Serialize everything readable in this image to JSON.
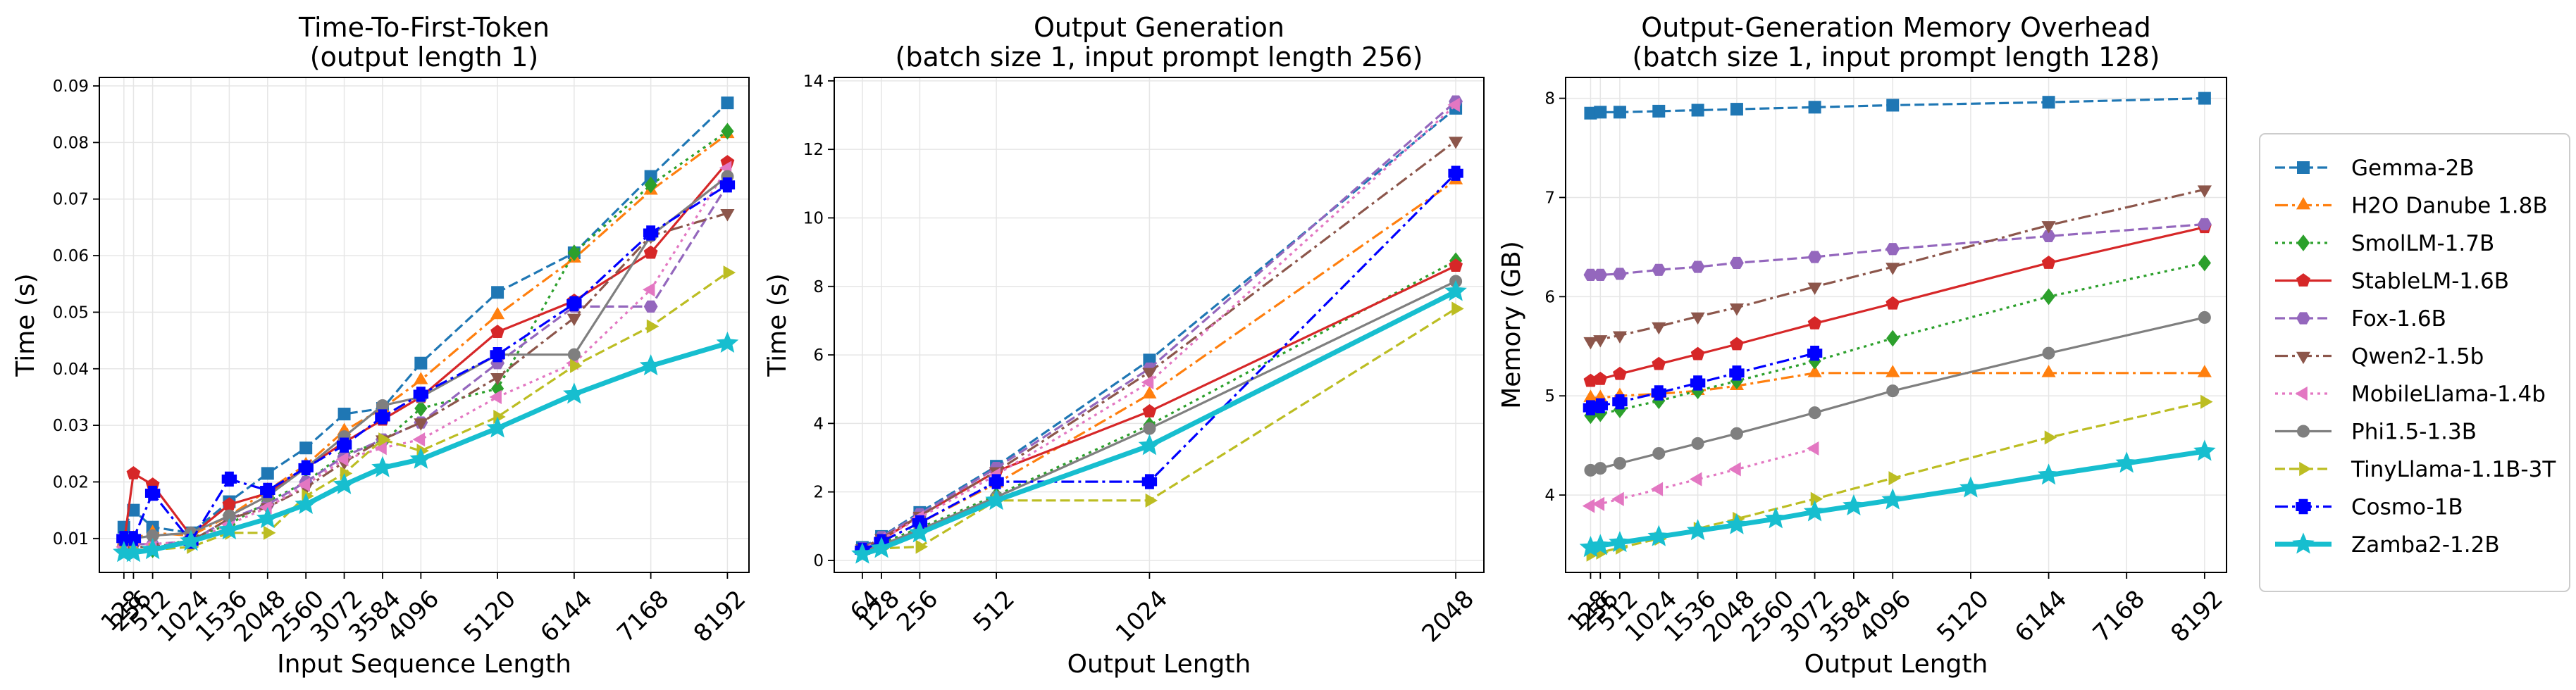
{
  "chart_data": [
    {
      "type": "line",
      "title": "Time-To-First-Token\n(output length 1)",
      "xlabel": "Input Sequence Length",
      "ylabel": "Time (s)",
      "xlim": [
        -200,
        8480
      ],
      "ylim": [
        0.004,
        0.0915
      ],
      "xticks": [
        128,
        256,
        512,
        1024,
        1536,
        2048,
        2560,
        3072,
        3584,
        4096,
        5120,
        6144,
        7168,
        8192
      ],
      "xtick_labels": [
        "128",
        "256",
        "512",
        "1024",
        "1536",
        "2048",
        "2560",
        "3072",
        "3584",
        "4096",
        "5120",
        "6144",
        "7168",
        "8192"
      ],
      "yticks": [
        0.01,
        0.02,
        0.03,
        0.04,
        0.05,
        0.06,
        0.07,
        0.08,
        0.09
      ],
      "ytick_labels": [
        "0.01",
        "0.02",
        "0.03",
        "0.04",
        "0.05",
        "0.06",
        "0.07",
        "0.08",
        "0.09"
      ],
      "grid": true,
      "series": [
        {
          "name": "Gemma-2B",
          "x": [
            128,
            256,
            512,
            1024,
            1536,
            2048,
            2560,
            3072,
            3584,
            4096,
            5120,
            6144,
            7168,
            8192
          ],
          "y": [
            0.012,
            0.015,
            0.012,
            0.011,
            0.0165,
            0.0215,
            0.026,
            0.032,
            0.033,
            0.041,
            0.0535,
            0.0605,
            0.074,
            0.087
          ]
        },
        {
          "name": "H2O Danube 1.8B",
          "x": [
            128,
            256,
            512,
            1024,
            1536,
            2048,
            2560,
            3072,
            3584,
            4096,
            5120,
            6144,
            7168,
            8192
          ],
          "y": [
            0.0095,
            0.01,
            0.011,
            0.0105,
            0.014,
            0.0185,
            0.023,
            0.029,
            0.033,
            0.038,
            0.0495,
            0.0595,
            0.0715,
            0.0815
          ]
        },
        {
          "name": "SmolLM-1.7B",
          "x": [
            128,
            256,
            512,
            1024,
            1536,
            2048,
            2560,
            3072,
            3584,
            4096,
            5120,
            6144,
            7168,
            8192
          ],
          "y": [
            0.008,
            0.009,
            0.008,
            0.01,
            0.0125,
            0.0165,
            0.02,
            0.025,
            0.027,
            0.033,
            0.0365,
            0.0605,
            0.0725,
            0.082
          ]
        },
        {
          "name": "StableLM-1.6B",
          "x": [
            128,
            256,
            512,
            1024,
            1536,
            2048,
            2560,
            3072,
            3584,
            4096,
            5120,
            6144,
            7168,
            8192
          ],
          "y": [
            0.009,
            0.0215,
            0.0195,
            0.0105,
            0.016,
            0.018,
            0.0225,
            0.027,
            0.031,
            0.035,
            0.0465,
            0.052,
            0.0605,
            0.0765
          ]
        },
        {
          "name": "Fox-1.6B",
          "x": [
            128,
            256,
            512,
            1024,
            1536,
            2048,
            2560,
            3072,
            3584,
            4096,
            5120,
            6144,
            7168,
            8192
          ],
          "y": [
            0.0085,
            0.009,
            0.009,
            0.0095,
            0.0135,
            0.016,
            0.02,
            0.0245,
            0.0275,
            0.0305,
            0.041,
            0.051,
            0.051,
            0.0725
          ]
        },
        {
          "name": "Qwen2-1.5b",
          "x": [
            128,
            256,
            512,
            1024,
            1536,
            2048,
            2560,
            3072,
            3584,
            4096,
            5120,
            6144,
            7168,
            8192
          ],
          "y": [
            0.008,
            0.0085,
            0.0085,
            0.0095,
            0.0135,
            0.0155,
            0.019,
            0.0235,
            0.0275,
            0.0305,
            0.0385,
            0.049,
            0.0635,
            0.0675
          ]
        },
        {
          "name": "MobileLlama-1.4b",
          "x": [
            128,
            256,
            512,
            1024,
            1536,
            2048,
            2560,
            3072,
            3584,
            4096,
            5120,
            6144,
            7168,
            8192
          ],
          "y": [
            0.0085,
            0.009,
            0.009,
            0.0095,
            0.0125,
            0.0155,
            0.0195,
            0.024,
            0.026,
            0.0275,
            0.035,
            0.041,
            0.054,
            0.0755
          ]
        },
        {
          "name": "Phi1.5-1.3B",
          "x": [
            128,
            256,
            512,
            1024,
            1536,
            2048,
            2560,
            3072,
            3584,
            4096,
            5120,
            6144,
            7168,
            8192
          ],
          "y": [
            0.0095,
            0.01,
            0.0105,
            0.011,
            0.014,
            0.0175,
            0.0225,
            0.028,
            0.0335,
            0.035,
            0.0425,
            0.0425,
            0.0635,
            0.074
          ]
        },
        {
          "name": "TinyLlama-1.1B-3T",
          "x": [
            128,
            256,
            512,
            1024,
            1536,
            2048,
            2560,
            3072,
            3584,
            4096,
            5120,
            6144,
            7168,
            8192
          ],
          "y": [
            0.0075,
            0.008,
            0.008,
            0.0085,
            0.011,
            0.011,
            0.0175,
            0.0215,
            0.0275,
            0.0255,
            0.0315,
            0.0405,
            0.0475,
            0.057
          ]
        },
        {
          "name": "Cosmo-1B",
          "x": [
            128,
            256,
            512,
            1024,
            1536,
            2048,
            2560,
            3072,
            3584,
            4096,
            5120,
            6144,
            7168,
            8192
          ],
          "y": [
            0.01,
            0.01,
            0.018,
            0.0095,
            0.0205,
            0.0185,
            0.0225,
            0.0265,
            0.0315,
            0.0355,
            0.0425,
            0.0515,
            0.064,
            0.0725
          ]
        },
        {
          "name": "Zamba2-1.2B",
          "x": [
            128,
            256,
            512,
            1024,
            1536,
            2048,
            2560,
            3072,
            3584,
            4096,
            5120,
            6144,
            7168,
            8192
          ],
          "y": [
            0.0075,
            0.0075,
            0.008,
            0.0095,
            0.0115,
            0.0135,
            0.016,
            0.0195,
            0.0225,
            0.024,
            0.0295,
            0.0355,
            0.0405,
            0.0445
          ]
        }
      ]
    },
    {
      "type": "line",
      "title": "Output Generation\n(batch size 1, input prompt length 256)",
      "xlabel": "Output Length",
      "ylabel": "Time (s)",
      "xlim": [
        -30,
        2142
      ],
      "ylim": [
        -0.35,
        14.1
      ],
      "xticks": [
        64,
        128,
        256,
        512,
        1024,
        2048
      ],
      "xtick_labels": [
        "64",
        "128",
        "256",
        "512",
        "1024",
        "2048"
      ],
      "yticks": [
        0,
        2,
        4,
        6,
        8,
        10,
        12,
        14
      ],
      "ytick_labels": [
        "0",
        "2",
        "4",
        "6",
        "8",
        "10",
        "12",
        "14"
      ],
      "grid": true,
      "series": [
        {
          "name": "Gemma-2B",
          "x": [
            64,
            128,
            256,
            512,
            1024,
            2048
          ],
          "y": [
            0.38,
            0.7,
            1.4,
            2.75,
            5.85,
            13.2
          ]
        },
        {
          "name": "H2O Danube 1.8B",
          "x": [
            64,
            128,
            256,
            512,
            1024,
            2048
          ],
          "y": [
            0.3,
            0.55,
            1.1,
            2.25,
            4.85,
            11.1
          ]
        },
        {
          "name": "SmolLM-1.7B",
          "x": [
            64,
            128,
            256,
            512,
            1024,
            2048
          ],
          "y": [
            0.28,
            0.5,
            0.95,
            1.9,
            3.95,
            8.75
          ]
        },
        {
          "name": "StableLM-1.6B",
          "x": [
            64,
            128,
            256,
            512,
            1024,
            2048
          ],
          "y": [
            0.3,
            0.6,
            1.3,
            2.6,
            4.35,
            8.6
          ]
        },
        {
          "name": "Fox-1.6B",
          "x": [
            64,
            128,
            256,
            512,
            1024,
            2048
          ],
          "y": [
            0.36,
            0.68,
            1.35,
            2.7,
            5.6,
            13.4
          ]
        },
        {
          "name": "Qwen2-1.5b",
          "x": [
            64,
            128,
            256,
            512,
            1024,
            2048
          ],
          "y": [
            0.35,
            0.65,
            1.3,
            2.6,
            5.5,
            12.25
          ]
        },
        {
          "name": "MobileLlama-1.4b",
          "x": [
            64,
            128,
            256,
            512,
            1024,
            2048
          ],
          "y": [
            0.33,
            0.62,
            1.25,
            2.5,
            5.2,
            13.3
          ]
        },
        {
          "name": "Phi1.5-1.3B",
          "x": [
            64,
            128,
            256,
            512,
            1024,
            2048
          ],
          "y": [
            0.25,
            0.45,
            0.9,
            1.85,
            3.85,
            8.15
          ]
        },
        {
          "name": "TinyLlama-1.1B-3T",
          "x": [
            64,
            128,
            256,
            512,
            1024,
            2048
          ],
          "y": [
            0.2,
            0.35,
            0.4,
            1.75,
            1.75,
            7.35
          ]
        },
        {
          "name": "Cosmo-1B",
          "x": [
            64,
            128,
            256,
            512,
            1024,
            2048
          ],
          "y": [
            0.3,
            0.55,
            1.1,
            2.3,
            2.3,
            11.3
          ]
        },
        {
          "name": "Zamba2-1.2B",
          "x": [
            64,
            128,
            256,
            512,
            1024,
            2048
          ],
          "y": [
            0.18,
            0.35,
            0.8,
            1.75,
            3.35,
            7.85
          ]
        }
      ]
    },
    {
      "type": "line",
      "title": "Output-Generation Memory Overhead\n(batch size 1, input prompt length 128)",
      "xlabel": "Output Length",
      "ylabel": "Memory (GB)",
      "xlim": [
        -200,
        8480
      ],
      "ylim": [
        3.22,
        8.21
      ],
      "xticks": [
        128,
        256,
        512,
        1024,
        1536,
        2048,
        2560,
        3072,
        3584,
        4096,
        5120,
        6144,
        7168,
        8192
      ],
      "xtick_labels": [
        "128",
        "256",
        "512",
        "1024",
        "1536",
        "2048",
        "2560",
        "3072",
        "3584",
        "4096",
        "5120",
        "6144",
        "7168",
        "8192"
      ],
      "yticks": [
        4,
        5,
        6,
        7,
        8
      ],
      "ytick_labels": [
        "4",
        "5",
        "6",
        "7",
        "8"
      ],
      "grid": true,
      "series": [
        {
          "name": "Gemma-2B",
          "x": [
            128,
            256,
            512,
            1024,
            1536,
            2048,
            3072,
            4096,
            6144,
            8192
          ],
          "y": [
            7.85,
            7.86,
            7.86,
            7.87,
            7.88,
            7.89,
            7.91,
            7.93,
            7.96,
            8.0
          ]
        },
        {
          "name": "H2O Danube 1.8B",
          "x": [
            128,
            256,
            512,
            1024,
            1536,
            2048,
            3072,
            4096,
            6144,
            8192
          ],
          "y": [
            4.98,
            4.98,
            5.0,
            5.02,
            5.05,
            5.1,
            5.23,
            5.23,
            5.23,
            5.23
          ]
        },
        {
          "name": "SmolLM-1.7B",
          "x": [
            128,
            256,
            512,
            1024,
            1536,
            2048,
            3072,
            4096,
            6144,
            8192
          ],
          "y": [
            4.8,
            4.82,
            4.86,
            4.95,
            5.05,
            5.15,
            5.35,
            5.58,
            6.0,
            6.34
          ]
        },
        {
          "name": "StableLM-1.6B",
          "x": [
            128,
            256,
            512,
            1024,
            1536,
            2048,
            3072,
            4096,
            6144,
            8192
          ],
          "y": [
            5.15,
            5.17,
            5.22,
            5.32,
            5.42,
            5.52,
            5.73,
            5.93,
            6.34,
            6.7
          ]
        },
        {
          "name": "Fox-1.6B",
          "x": [
            128,
            256,
            512,
            1024,
            1536,
            2048,
            3072,
            4096,
            6144,
            8192
          ],
          "y": [
            6.22,
            6.22,
            6.23,
            6.27,
            6.3,
            6.34,
            6.4,
            6.48,
            6.61,
            6.73
          ]
        },
        {
          "name": "Qwen2-1.5b",
          "x": [
            128,
            256,
            512,
            1024,
            1536,
            2048,
            3072,
            4096,
            6144,
            8192
          ],
          "y": [
            5.55,
            5.57,
            5.61,
            5.7,
            5.8,
            5.89,
            6.1,
            6.3,
            6.72,
            7.08
          ]
        },
        {
          "name": "MobileLlama-1.4b",
          "x": [
            128,
            256,
            512,
            1024,
            1536,
            2048,
            3072
          ],
          "y": [
            3.89,
            3.91,
            3.96,
            4.06,
            4.16,
            4.26,
            4.47
          ]
        },
        {
          "name": "Phi1.5-1.3B",
          "x": [
            128,
            256,
            512,
            1024,
            1536,
            2048,
            3072,
            4096,
            6144,
            8192
          ],
          "y": [
            4.25,
            4.27,
            4.32,
            4.42,
            4.52,
            4.62,
            4.83,
            5.05,
            5.43,
            5.79
          ]
        },
        {
          "name": "TinyLlama-1.1B-3T",
          "x": [
            128,
            256,
            512,
            1024,
            1536,
            2048,
            3072,
            4096,
            6144,
            8192
          ],
          "y": [
            3.4,
            3.42,
            3.47,
            3.56,
            3.66,
            3.76,
            3.96,
            4.17,
            4.58,
            4.94
          ]
        },
        {
          "name": "Cosmo-1B",
          "x": [
            128,
            256,
            512,
            1024,
            1536,
            2048,
            3072
          ],
          "y": [
            4.88,
            4.9,
            4.94,
            5.03,
            5.13,
            5.23,
            5.43
          ]
        },
        {
          "name": "Zamba2-1.2B",
          "x": [
            128,
            256,
            512,
            1024,
            1536,
            2048,
            2560,
            3072,
            3584,
            4096,
            5120,
            6144,
            7168,
            8192
          ],
          "y": [
            3.47,
            3.49,
            3.52,
            3.58,
            3.64,
            3.7,
            3.76,
            3.83,
            3.89,
            3.95,
            4.07,
            4.2,
            4.32,
            4.44
          ]
        }
      ]
    }
  ],
  "series_style": [
    {
      "name": "Gemma-2B",
      "color": "#1f77b4",
      "dash": "dashed",
      "marker": "square"
    },
    {
      "name": "H2O Danube 1.8B",
      "color": "#ff7f0e",
      "dash": "dashdot",
      "marker": "triangle-up"
    },
    {
      "name": "SmolLM-1.7B",
      "color": "#2ca02c",
      "dash": "dotted",
      "marker": "diamond"
    },
    {
      "name": "StableLM-1.6B",
      "color": "#d62728",
      "dash": "solid",
      "marker": "pentagon"
    },
    {
      "name": "Fox-1.6B",
      "color": "#9467bd",
      "dash": "dashed",
      "marker": "hexagon"
    },
    {
      "name": "Qwen2-1.5b",
      "color": "#8c564b",
      "dash": "dashdot",
      "marker": "triangle-down"
    },
    {
      "name": "MobileLlama-1.4b",
      "color": "#e377c2",
      "dash": "dotted",
      "marker": "triangle-left"
    },
    {
      "name": "Phi1.5-1.3B",
      "color": "#7f7f7f",
      "dash": "solid",
      "marker": "circle"
    },
    {
      "name": "TinyLlama-1.1B-3T",
      "color": "#bcbd22",
      "dash": "dashed",
      "marker": "triangle-right"
    },
    {
      "name": "Cosmo-1B",
      "color": "#0000ff",
      "dash": "dashdot",
      "marker": "plus"
    },
    {
      "name": "Zamba2-1.2B",
      "color": "#17becf",
      "dash": "solid-thick",
      "marker": "star"
    }
  ],
  "legend": {
    "position": "right"
  }
}
